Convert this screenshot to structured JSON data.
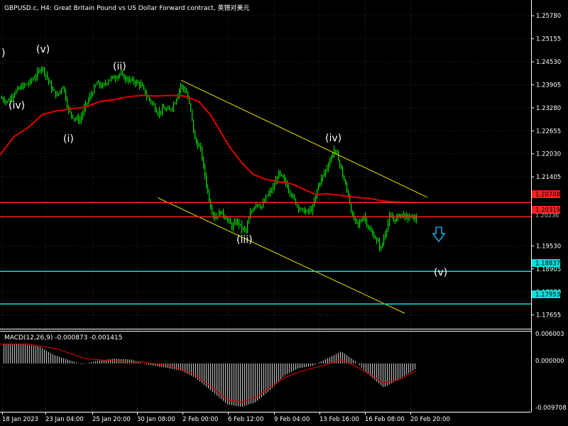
{
  "header": {
    "symbol": "GBPUSD.c",
    "timeframe": "H4",
    "description": "Great Britain Pound vs US Dollar Forward contract",
    "description_cn": "英镑对美元"
  },
  "colors": {
    "background": "#000000",
    "candles": "#00e600",
    "ma": "#e00000",
    "channel": "#e8e000",
    "resistance": "#ff2020",
    "target": "#00e0e0",
    "macd_hist": "#b8b8b8",
    "macd_signal": "#d00000",
    "text": "#ffffff",
    "arrow": "#1ea0dc"
  },
  "price_axis": {
    "ticks": [
      "1.25780",
      "1.25155",
      "1.24530",
      "1.23905",
      "1.23280",
      "1.22655",
      "1.22030",
      "1.21405",
      "1.19530",
      "1.18905",
      "1.18280",
      "1.17655"
    ]
  },
  "price_labels": {
    "res1": "1.20708",
    "res2": "1.20319",
    "partial": "1.20236",
    "target1": "1.18837",
    "target2": "1.17953"
  },
  "time_axis": [
    "18 Jan 2023",
    "23 Jan 04:00",
    "25 Jan 20:00",
    "30 Jan 08:00",
    "2 Feb 00:00",
    "6 Feb 12:00",
    "9 Feb 04:00",
    "13 Feb 16:00",
    "16 Feb 08:00",
    "20 Feb 20:00"
  ],
  "waves": {
    "w_paren": ")",
    "w_v": "(v)",
    "w_iv1": "(iv)",
    "w_i": "(i)",
    "w_ii": "(ii)",
    "w_iii": "(iii)",
    "w_iv2": "(iv)",
    "w_v2": "(v)"
  },
  "macd": {
    "label": "MACD(12,26,9) -0.000873 -0.001415",
    "ticks": [
      "0.006003",
      "0.000000",
      "-0.009708"
    ]
  },
  "chart_data": {
    "type": "candlestick",
    "title": "GBPUSD.c, H4:  Great Britain Pound vs US Dollar Forward contract, 英镑对美元",
    "x_ticks": [
      "18 Jan 2023",
      "23 Jan 04:00",
      "25 Jan 20:00",
      "30 Jan 08:00",
      "2 Feb 00:00",
      "6 Feb 12:00",
      "9 Feb 04:00",
      "13 Feb 16:00",
      "16 Feb 08:00",
      "20 Feb 20:00"
    ],
    "ylim": [
      1.173,
      1.259
    ],
    "close_path": [
      [
        0,
        1.2355
      ],
      [
        10,
        1.2345
      ],
      [
        20,
        1.237
      ],
      [
        30,
        1.2385
      ],
      [
        40,
        1.2395
      ],
      [
        50,
        1.2415
      ],
      [
        58,
        1.244
      ],
      [
        66,
        1.241
      ],
      [
        72,
        1.238
      ],
      [
        80,
        1.236
      ],
      [
        88,
        1.239
      ],
      [
        96,
        1.232
      ],
      [
        104,
        1.23
      ],
      [
        112,
        1.2295
      ],
      [
        120,
        1.2335
      ],
      [
        128,
        1.2365
      ],
      [
        136,
        1.2395
      ],
      [
        144,
        1.2385
      ],
      [
        152,
        1.2405
      ],
      [
        160,
        1.241
      ],
      [
        168,
        1.242
      ],
      [
        178,
        1.2405
      ],
      [
        188,
        1.24
      ],
      [
        198,
        1.239
      ],
      [
        206,
        1.236
      ],
      [
        214,
        1.234
      ],
      [
        222,
        1.2315
      ],
      [
        230,
        1.2325
      ],
      [
        238,
        1.232
      ],
      [
        246,
        1.2345
      ],
      [
        254,
        1.239
      ],
      [
        262,
        1.237
      ],
      [
        268,
        1.232
      ],
      [
        274,
        1.224
      ],
      [
        282,
        1.2215
      ],
      [
        290,
        1.212
      ],
      [
        296,
        1.206
      ],
      [
        302,
        1.203
      ],
      [
        310,
        1.2045
      ],
      [
        318,
        1.203
      ],
      [
        326,
        1.2005
      ],
      [
        334,
        1.202
      ],
      [
        340,
        1.2
      ],
      [
        346,
        1.1995
      ],
      [
        352,
        1.204
      ],
      [
        360,
        1.207
      ],
      [
        368,
        1.206
      ],
      [
        376,
        1.209
      ],
      [
        384,
        1.211
      ],
      [
        392,
        1.215
      ],
      [
        400,
        1.213
      ],
      [
        408,
        1.21
      ],
      [
        416,
        1.207
      ],
      [
        424,
        1.205
      ],
      [
        432,
        1.2045
      ],
      [
        440,
        1.2055
      ],
      [
        448,
        1.212
      ],
      [
        456,
        1.215
      ],
      [
        464,
        1.2185
      ],
      [
        470,
        1.2215
      ],
      [
        476,
        1.219
      ],
      [
        484,
        1.213
      ],
      [
        490,
        1.209
      ],
      [
        496,
        1.203
      ],
      [
        504,
        1.201
      ],
      [
        512,
        1.2035
      ],
      [
        520,
        1.1995
      ],
      [
        528,
        1.1975
      ],
      [
        536,
        1.1945
      ],
      [
        542,
        1.199
      ],
      [
        548,
        1.203
      ],
      [
        556,
        1.2025
      ],
      [
        564,
        1.204
      ],
      [
        572,
        1.203
      ],
      [
        580,
        1.2032
      ],
      [
        586,
        1.2025
      ]
    ],
    "ma_path": [
      [
        0,
        1.22
      ],
      [
        20,
        1.225
      ],
      [
        40,
        1.2275
      ],
      [
        60,
        1.231
      ],
      [
        80,
        1.232
      ],
      [
        100,
        1.2325
      ],
      [
        120,
        1.233
      ],
      [
        140,
        1.2345
      ],
      [
        160,
        1.235
      ],
      [
        180,
        1.2358
      ],
      [
        200,
        1.2362
      ],
      [
        220,
        1.236
      ],
      [
        240,
        1.2362
      ],
      [
        260,
        1.236
      ],
      [
        280,
        1.2345
      ],
      [
        296,
        1.231
      ],
      [
        310,
        1.2265
      ],
      [
        324,
        1.222
      ],
      [
        340,
        1.218
      ],
      [
        356,
        1.2148
      ],
      [
        372,
        1.2135
      ],
      [
        390,
        1.2128
      ],
      [
        410,
        1.2122
      ],
      [
        430,
        1.2105
      ],
      [
        446,
        1.2092
      ],
      [
        460,
        1.2095
      ],
      [
        480,
        1.209
      ],
      [
        500,
        1.2085
      ],
      [
        520,
        1.2082
      ],
      [
        540,
        1.2075
      ],
      [
        560,
        1.2072
      ],
      [
        587,
        1.207
      ]
    ],
    "channel_upper": [
      [
        255,
        1.2403
      ],
      [
        602,
        1.2085
      ]
    ],
    "channel_lower": [
      [
        222,
        1.2084
      ],
      [
        570,
        1.177
      ]
    ],
    "horizontal_levels": [
      1.20708,
      1.20319,
      1.18837,
      1.17953
    ],
    "macd": {
      "ylim": [
        -0.009708,
        0.006003
      ],
      "hist_path": [
        [
          5,
          0.004
        ],
        [
          30,
          0.004
        ],
        [
          55,
          0.0035
        ],
        [
          75,
          0.0018
        ],
        [
          95,
          0.0008
        ],
        [
          115,
          -0.0002
        ],
        [
          135,
          0.0005
        ],
        [
          160,
          0.001
        ],
        [
          185,
          0.0008
        ],
        [
          205,
          -0.0002
        ],
        [
          230,
          -0.0008
        ],
        [
          255,
          -0.0015
        ],
        [
          275,
          -0.003
        ],
        [
          300,
          -0.006
        ],
        [
          320,
          -0.0085
        ],
        [
          340,
          -0.009
        ],
        [
          360,
          -0.008
        ],
        [
          380,
          -0.0055
        ],
        [
          400,
          -0.0025
        ],
        [
          420,
          -0.001
        ],
        [
          440,
          -0.0005
        ],
        [
          460,
          0.001
        ],
        [
          480,
          0.0025
        ],
        [
          500,
          0.0005
        ],
        [
          520,
          -0.0025
        ],
        [
          540,
          -0.005
        ],
        [
          555,
          -0.0038
        ],
        [
          570,
          -0.0025
        ],
        [
          586,
          -0.001
        ]
      ],
      "signal_path": [
        [
          0,
          0.004
        ],
        [
          40,
          0.004
        ],
        [
          80,
          0.003
        ],
        [
          120,
          0.001
        ],
        [
          160,
          0.0005
        ],
        [
          200,
          0.0003
        ],
        [
          240,
          -0.0005
        ],
        [
          270,
          -0.002
        ],
        [
          300,
          -0.005
        ],
        [
          320,
          -0.0075
        ],
        [
          340,
          -0.008
        ],
        [
          360,
          -0.007
        ],
        [
          380,
          -0.005
        ],
        [
          400,
          -0.003
        ],
        [
          420,
          -0.0018
        ],
        [
          440,
          -0.001
        ],
        [
          460,
          -0.0002
        ],
        [
          480,
          0.0008
        ],
        [
          500,
          -0.0005
        ],
        [
          520,
          -0.0022
        ],
        [
          540,
          -0.004
        ],
        [
          560,
          -0.0035
        ],
        [
          586,
          -0.0015
        ]
      ]
    }
  }
}
